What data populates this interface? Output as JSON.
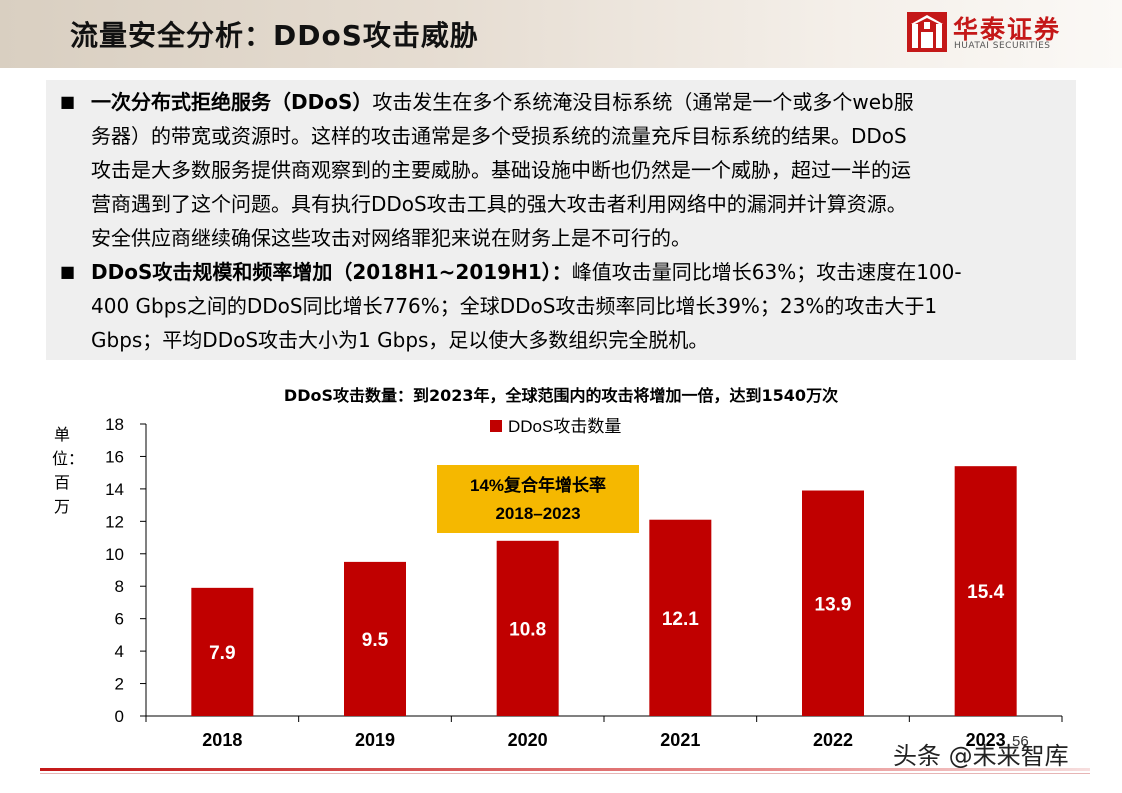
{
  "header": {
    "title": "流量安全分析：DDoS攻击威胁",
    "logo_cn": "华泰证券",
    "logo_en": "HUATAI SECURITIES"
  },
  "bullets": [
    {
      "lead": "一次分布式拒绝服务（DDoS）",
      "lines": [
        "攻击发生在多个系统淹没目标系统（通常是一个或多个web服",
        "务器）的带宽或资源时。这样的攻击通常是多个受损系统的流量充斥目标系统的结果。DDoS",
        "攻击是大多数服务提供商观察到的主要威胁。基础设施中断也仍然是一个威胁，超过一半的运",
        "营商遇到了这个问题。具有执行DDoS攻击工具的强大攻击者利用网络中的漏洞并计算资源。",
        "安全供应商继续确保这些攻击对网络罪犯来说在财务上是不可行的。"
      ]
    },
    {
      "lead": "DDoS攻击规模和频率增加（2018H1~2019H1）：",
      "lines": [
        "峰值攻击量同比增长63%；攻击速度在100-",
        "400 Gbps之间的DDoS同比增长776%；全球DDoS攻击频率同比增长39%；23%的攻击大于1",
        "Gbps；平均DDoS攻击大小为1 Gbps，足以使大多数组织完全脱机。"
      ]
    }
  ],
  "chart_data": {
    "type": "bar",
    "title": "DDoS攻击数量：到2023年，全球范围内的攻击将增加一倍，达到1540万次",
    "ylabel": "单位：百万",
    "categories": [
      "2018",
      "2019",
      "2020",
      "2021",
      "2022",
      "2023"
    ],
    "series": [
      {
        "name": "DDoS攻击数量",
        "values": [
          7.9,
          9.5,
          10.8,
          12.1,
          13.9,
          15.4
        ],
        "color": "#c00000"
      }
    ],
    "data_labels": [
      "7.9",
      "9.5",
      "10.8",
      "12.1",
      "13.9",
      "15.4"
    ],
    "ylim": [
      0,
      18
    ],
    "yticks": [
      0,
      2,
      4,
      6,
      8,
      10,
      12,
      14,
      16,
      18
    ],
    "grid": false,
    "legend_position": "top-center",
    "annotation": {
      "line1": "14%复合年增长率",
      "line2": "2018–2023",
      "color": "#f5b800"
    }
  },
  "page_number": "56",
  "watermark": "头条 @未来智库"
}
